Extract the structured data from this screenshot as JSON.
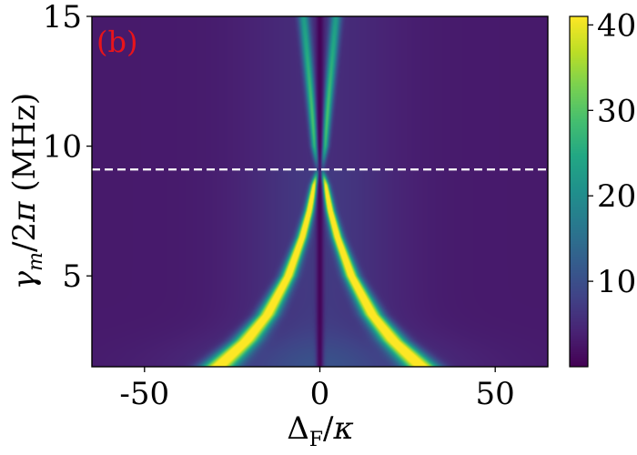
{
  "chart_data": {
    "type": "heatmap",
    "panel_label": "(b)",
    "xlabel": "Δ_F/κ",
    "ylabel": "γ_m/2π (MHz)",
    "x_range": [
      -65,
      65
    ],
    "y_range": [
      1.5,
      15
    ],
    "x_ticks": [
      {
        "value": -50,
        "label": "-50"
      },
      {
        "value": 0,
        "label": "0"
      },
      {
        "value": 50,
        "label": "50"
      }
    ],
    "y_ticks": [
      {
        "value": 5,
        "label": "5"
      },
      {
        "value": 10,
        "label": "10"
      },
      {
        "value": 15,
        "label": "15"
      }
    ],
    "colorbar": {
      "colormap": "viridis",
      "range": [
        0,
        41
      ],
      "ticks": [
        {
          "value": 10,
          "label": "10"
        },
        {
          "value": 20,
          "label": "20"
        },
        {
          "value": 30,
          "label": "30"
        },
        {
          "value": 40,
          "label": "40"
        }
      ]
    },
    "reference_line": {
      "y": 9.1,
      "style": "dashed",
      "color": "#ffffff"
    },
    "peak_ridge": [
      {
        "y": 1.5,
        "x": 29
      },
      {
        "y": 2.5,
        "x": 21
      },
      {
        "y": 3.5,
        "x": 15
      },
      {
        "y": 5.0,
        "x": 9
      },
      {
        "y": 6.5,
        "x": 5
      },
      {
        "y": 7.5,
        "x": 3
      },
      {
        "y": 8.5,
        "x": 1.5
      },
      {
        "y": 9.1,
        "x": 0
      },
      {
        "y": 10.0,
        "x": 1.3
      },
      {
        "y": 12.0,
        "x": 2.6
      },
      {
        "y": 15.0,
        "x": 4.6
      }
    ],
    "peak_value": 41,
    "colors": {
      "panel_label": "#e8141b",
      "dashed_line": "#ffffff"
    }
  }
}
